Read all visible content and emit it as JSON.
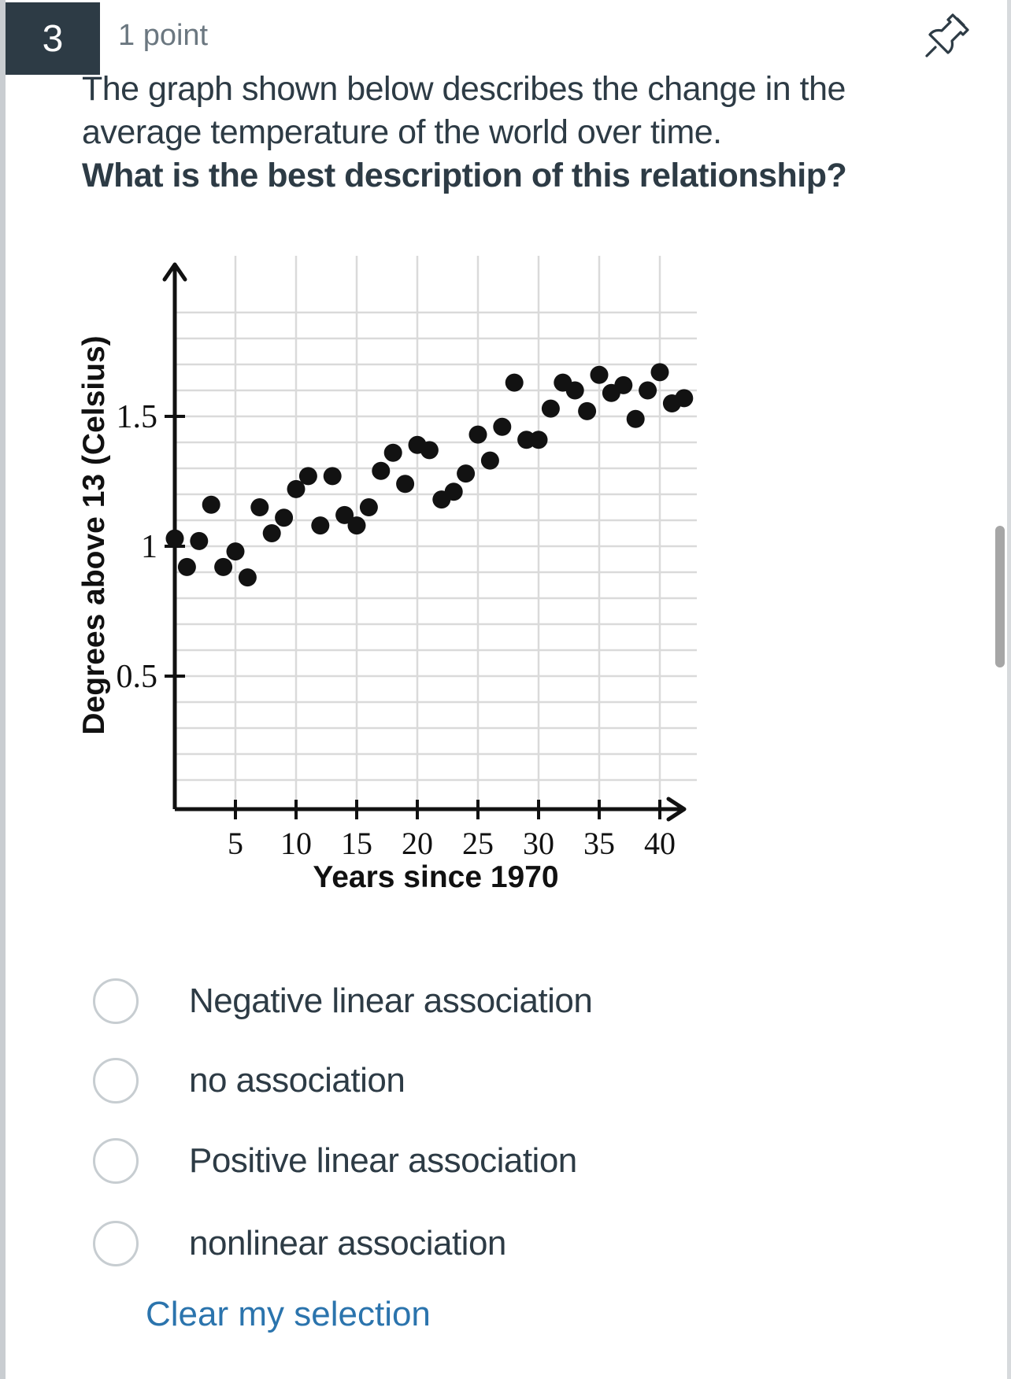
{
  "question_header": {
    "number": "3",
    "points_label": "1 point"
  },
  "question": {
    "prompt_lines": [
      "The graph shown below describes the change in the",
      "average temperature of the world over time."
    ],
    "prompt_bold": "What is the best description of this relationship?"
  },
  "chart_data": {
    "type": "scatter",
    "title": "",
    "xlabel": "Years since 1970",
    "ylabel": "Degrees above 13 (Celsius)",
    "x_ticks": [
      5,
      10,
      15,
      20,
      25,
      30,
      35,
      40
    ],
    "y_ticks": [
      0.5,
      1,
      1.5
    ],
    "xlim": [
      0,
      43
    ],
    "ylim": [
      0,
      1.95
    ],
    "grid": true,
    "grid_step_x": 5,
    "grid_step_y": 0.1,
    "points": [
      [
        0,
        1.03
      ],
      [
        1,
        0.92
      ],
      [
        2,
        1.02
      ],
      [
        3,
        1.16
      ],
      [
        4,
        0.92
      ],
      [
        5,
        0.98
      ],
      [
        6,
        0.88
      ],
      [
        7,
        1.15
      ],
      [
        8,
        1.05
      ],
      [
        9,
        1.11
      ],
      [
        10,
        1.22
      ],
      [
        11,
        1.27
      ],
      [
        12,
        1.08
      ],
      [
        13,
        1.27
      ],
      [
        14,
        1.12
      ],
      [
        15,
        1.08
      ],
      [
        16,
        1.15
      ],
      [
        17,
        1.29
      ],
      [
        18,
        1.36
      ],
      [
        19,
        1.24
      ],
      [
        20,
        1.39
      ],
      [
        21,
        1.37
      ],
      [
        22,
        1.18
      ],
      [
        23,
        1.21
      ],
      [
        24,
        1.28
      ],
      [
        25,
        1.43
      ],
      [
        26,
        1.33
      ],
      [
        27,
        1.46
      ],
      [
        28,
        1.63
      ],
      [
        29,
        1.41
      ],
      [
        30,
        1.41
      ],
      [
        31,
        1.53
      ],
      [
        32,
        1.63
      ],
      [
        33,
        1.6
      ],
      [
        34,
        1.52
      ],
      [
        35,
        1.66
      ],
      [
        36,
        1.59
      ],
      [
        37,
        1.62
      ],
      [
        38,
        1.49
      ],
      [
        39,
        1.6
      ],
      [
        40,
        1.67
      ],
      [
        41,
        1.55
      ],
      [
        42,
        1.57
      ]
    ]
  },
  "options": [
    {
      "label": "Negative linear association",
      "selected": false
    },
    {
      "label": "no association",
      "selected": false
    },
    {
      "label": "Positive linear association",
      "selected": false
    },
    {
      "label": "nonlinear association",
      "selected": false
    }
  ],
  "actions": {
    "clear_selection_label": "Clear my selection"
  },
  "colors": {
    "header_box": "#2d3b45",
    "text_primary": "#2d3b45",
    "text_muted": "#6b7780",
    "link": "#2b74ad",
    "radio_border": "#c7cdd1",
    "dot": "#121212",
    "grid_line": "#dadada",
    "axis": "#111111",
    "scrollbar": "#a6a6a6"
  }
}
